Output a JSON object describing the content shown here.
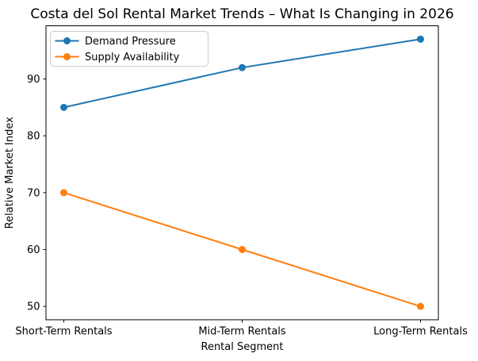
{
  "chart_data": {
    "type": "line",
    "title": "Costa del Sol Rental Market Trends – What Is Changing in 2026",
    "xlabel": "Rental Segment",
    "ylabel": "Relative Market Index",
    "categories": [
      "Short-Term Rentals",
      "Mid-Term Rentals",
      "Long-Term Rentals"
    ],
    "series": [
      {
        "name": "Demand Pressure",
        "values": [
          85,
          92,
          97
        ],
        "color": "#1f77b4"
      },
      {
        "name": "Supply Availability",
        "values": [
          70,
          60,
          50
        ],
        "color": "#ff7f0e"
      }
    ],
    "yticks": [
      50,
      60,
      70,
      80,
      90
    ],
    "ylim": [
      47.65,
      99.35
    ],
    "xlim": [
      -0.1,
      2.1
    ],
    "grid": false,
    "marker": "o",
    "legend_position": "upper left",
    "background_color": "#ffffff",
    "text_color": "#000000",
    "legend_border_color": "#cccccc"
  }
}
